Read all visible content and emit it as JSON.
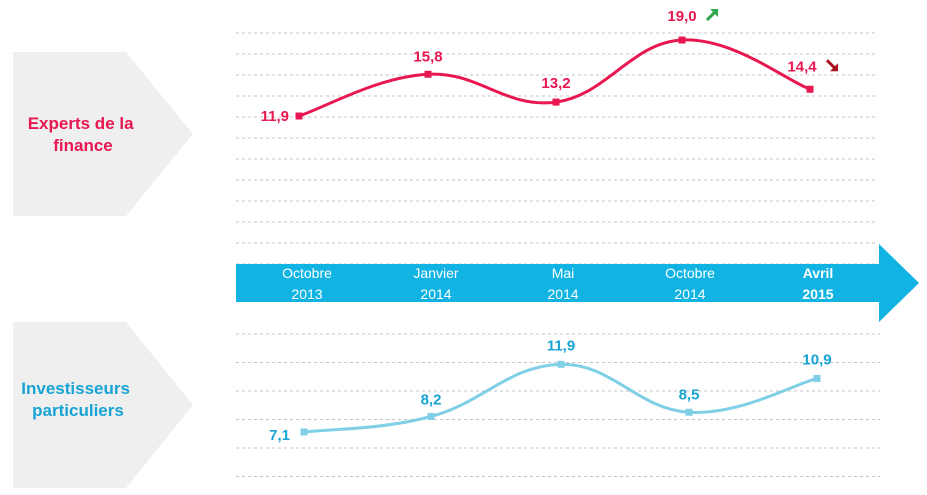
{
  "colors": {
    "finance": "#e8174f",
    "investors": "#7fcfe6",
    "investors_text": "#17a3d4",
    "timeline": "#11b3e2",
    "arrow_up": "#2aa84a",
    "arrow_down": "#a80f1f",
    "grid": "#c4c4c4",
    "panel": "#efefef"
  },
  "chart_data": [
    {
      "type": "line",
      "panel_label": [
        "Experts de la",
        "finance"
      ],
      "x": [
        "Octobre 2013",
        "Janvier 2014",
        "Mai 2014",
        "Octobre 2014",
        "Avril 2015"
      ],
      "values": [
        11.9,
        15.8,
        13.2,
        19.0,
        14.4
      ],
      "labels": [
        "11,9",
        "15,8",
        "13,2",
        "19,0",
        "14,4"
      ],
      "trend_icons": {
        "3": "arrow-up-right-icon",
        "4": "arrow-down-right-icon"
      },
      "grid": true
    },
    {
      "type": "line",
      "panel_label": [
        "Investisseurs",
        "particuliers"
      ],
      "x": [
        "Octobre 2013",
        "Janvier 2014",
        "Mai 2014",
        "Octobre 2014",
        "Avril 2015"
      ],
      "values": [
        7.1,
        8.2,
        11.9,
        8.5,
        10.9
      ],
      "labels": [
        "7,1",
        "8,2",
        "11,9",
        "8,5",
        "10,9"
      ],
      "grid": true
    }
  ],
  "timeline": {
    "ticks": [
      {
        "month": "Octobre",
        "year": "2013",
        "bold": false
      },
      {
        "month": "Janvier",
        "year": "2014",
        "bold": false
      },
      {
        "month": "Mai",
        "year": "2014",
        "bold": false
      },
      {
        "month": "Octobre",
        "year": "2014",
        "bold": false
      },
      {
        "month": "Avril",
        "year": "2015",
        "bold": true
      }
    ]
  }
}
